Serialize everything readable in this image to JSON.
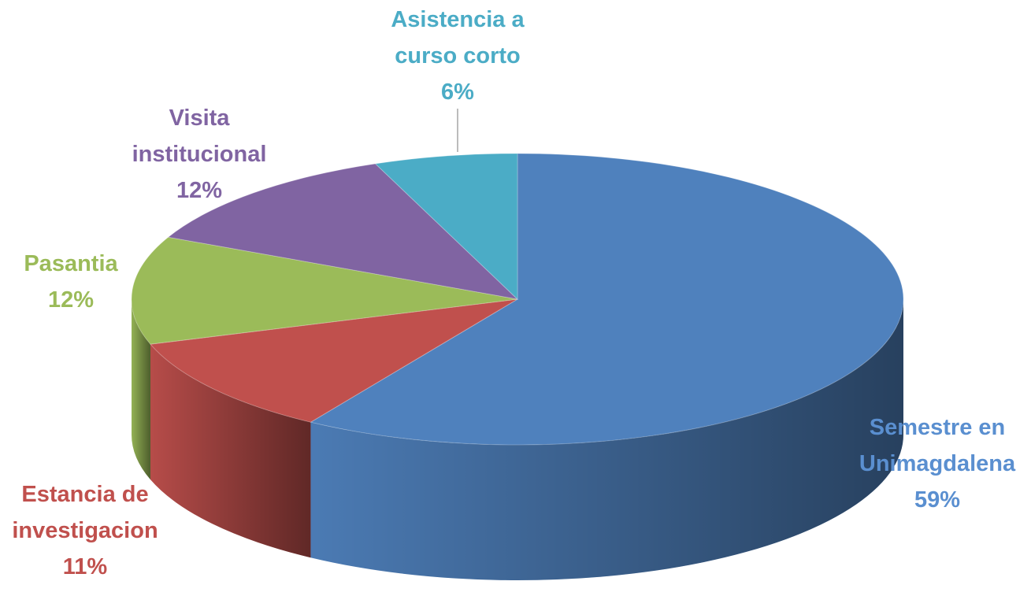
{
  "chart_data": {
    "type": "pie3d",
    "categories": [
      "Semestre en Unimagdalena",
      "Estancia de investigacion",
      "Pasantia",
      "Visita institucional",
      "Asistencia a curso corto"
    ],
    "values": [
      59,
      11,
      12,
      12,
      6
    ],
    "value_labels": [
      "59%",
      "11%",
      "12%",
      "12%",
      "6%"
    ],
    "colors": [
      "#4f81bd",
      "#c0504d",
      "#9bbb59",
      "#8064a2",
      "#4bacc6"
    ]
  }
}
